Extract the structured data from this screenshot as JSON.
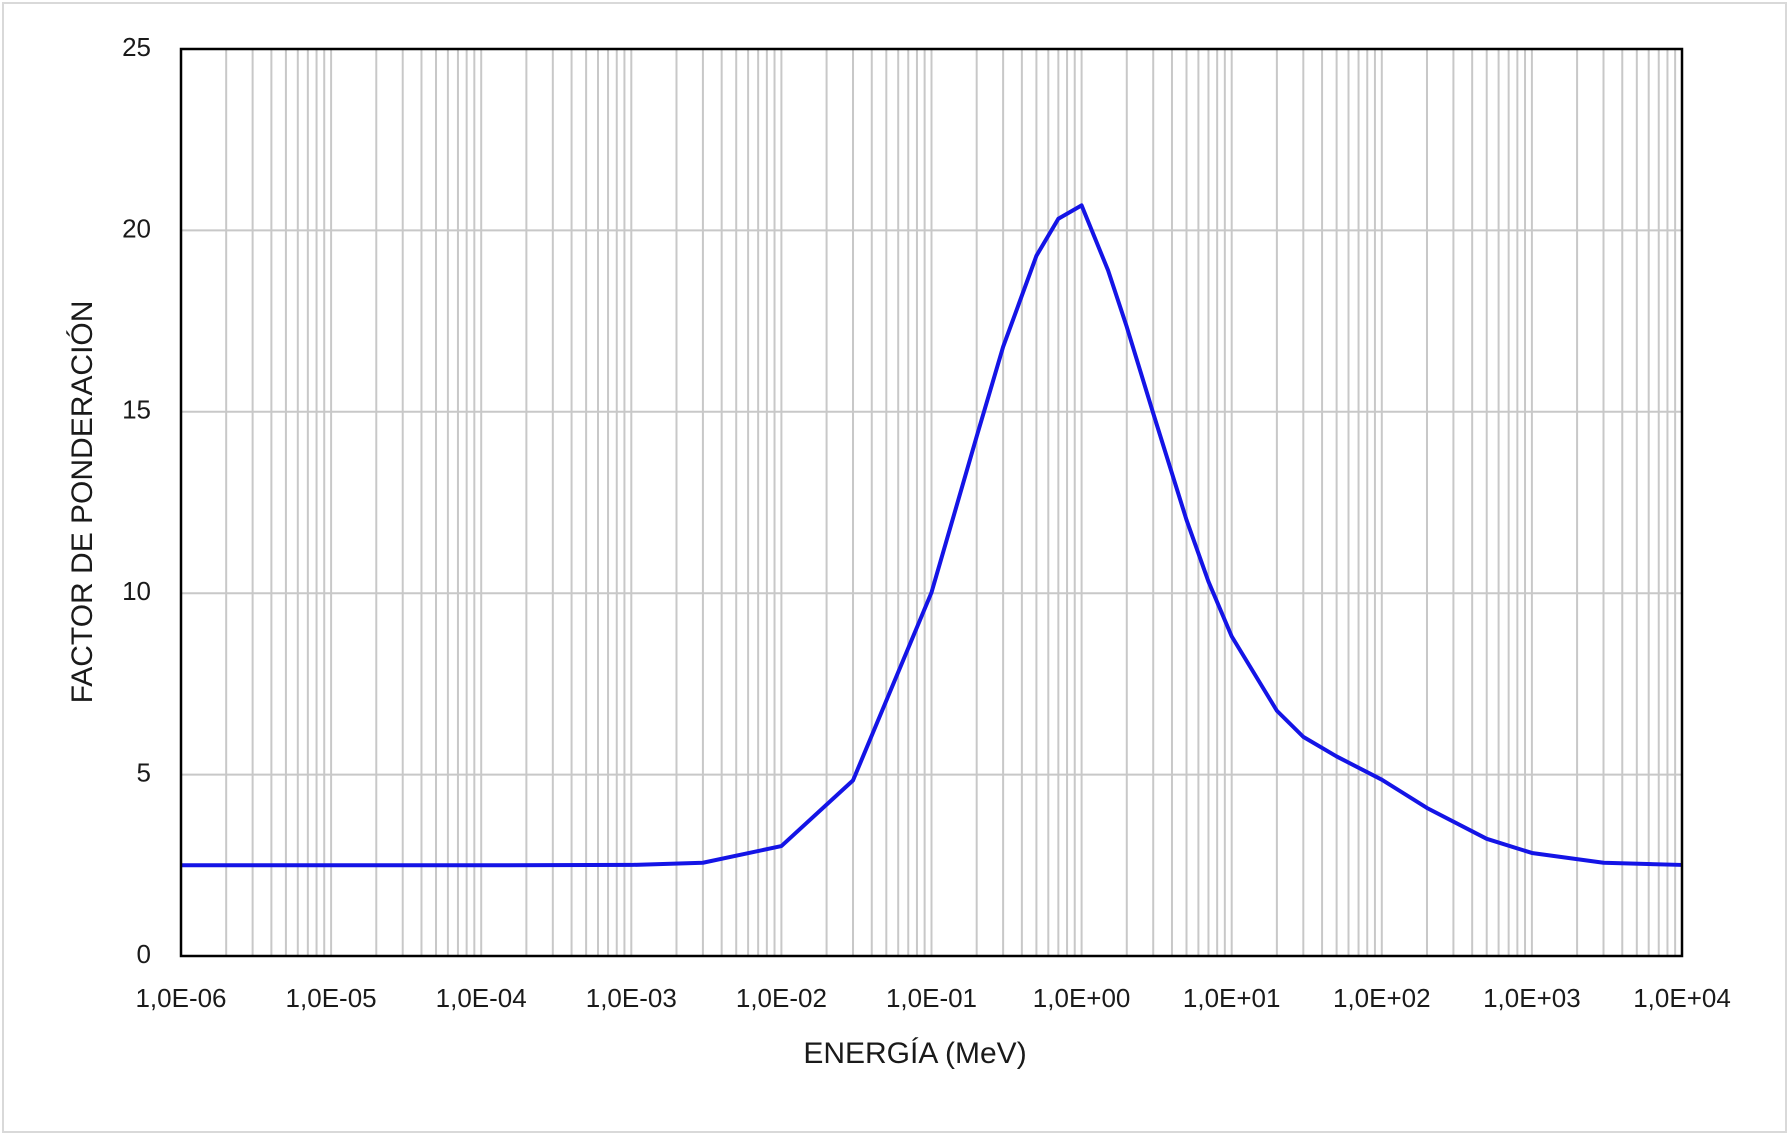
{
  "chart_data": {
    "type": "line",
    "x_label": "ENERGÍA (MeV)",
    "y_label": "FACTOR DE PONDERACIÓN",
    "x_scale": "log",
    "grid": true,
    "minor_grid": true,
    "xlim": [
      1e-06,
      10000
    ],
    "ylim": [
      0,
      25
    ],
    "xticks": [
      {
        "value": 1e-06,
        "label": "1,0E-06"
      },
      {
        "value": 1e-05,
        "label": "1,0E-05"
      },
      {
        "value": 0.0001,
        "label": "1,0E-04"
      },
      {
        "value": 0.001,
        "label": "1,0E-03"
      },
      {
        "value": 0.01,
        "label": "1,0E-02"
      },
      {
        "value": 0.1,
        "label": "1,0E-01"
      },
      {
        "value": 1,
        "label": "1,0E+00"
      },
      {
        "value": 10,
        "label": "1,0E+01"
      },
      {
        "value": 100,
        "label": "1,0E+02"
      },
      {
        "value": 1000,
        "label": "1,0E+03"
      },
      {
        "value": 10000,
        "label": "1,0E+04"
      }
    ],
    "yticks": [
      0,
      5,
      10,
      15,
      20,
      25
    ],
    "x": [
      1e-06,
      1e-05,
      0.0001,
      0.001,
      0.003,
      0.01,
      0.03,
      0.1,
      0.2,
      0.3,
      0.5,
      0.7,
      1,
      1.5,
      2,
      3,
      5,
      7,
      10,
      20,
      30,
      50,
      100,
      200,
      500,
      1000,
      3000,
      10000
    ],
    "series": [
      {
        "color": "#1414e6",
        "values": [
          2.5,
          2.5,
          2.5,
          2.51,
          2.57,
          3.03,
          4.84,
          10.02,
          14.32,
          16.79,
          19.3,
          20.32,
          20.69,
          18.9,
          17.34,
          14.96,
          12.02,
          10.32,
          8.81,
          6.76,
          6.04,
          5.5,
          4.86,
          4.08,
          3.23,
          2.84,
          2.57,
          2.51
        ]
      }
    ]
  }
}
